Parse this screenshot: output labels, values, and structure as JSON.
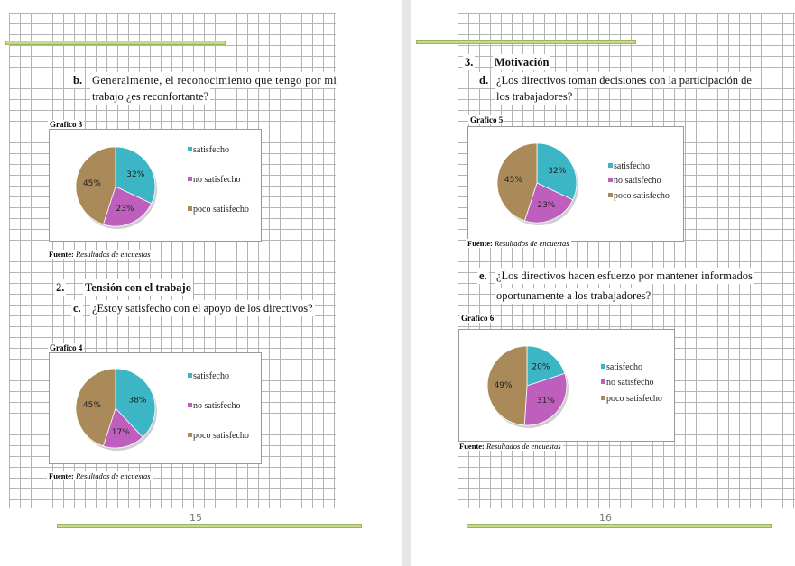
{
  "left_page": {
    "q_b": {
      "letter": "b.",
      "line1": "Generalmente, el reconocimiento que tengo por mi",
      "line2": "trabajo ¿es reconfortante?"
    },
    "chart3": {
      "title": "Grafico 3",
      "source_label": "Fuente:",
      "source_text": "Resultados de encuestas"
    },
    "section2": {
      "number": "2.",
      "title": "Tensión con el trabajo"
    },
    "q_c": {
      "letter": "c.",
      "text": "¿Estoy satisfecho con el apoyo de los directivos?"
    },
    "chart4": {
      "title": "Grafico 4",
      "source_label": "Fuente:",
      "source_text": "Resultados de encuestas"
    },
    "page_number": "15"
  },
  "right_page": {
    "section3": {
      "number": "3.",
      "title": "Motivación"
    },
    "q_d": {
      "letter": "d.",
      "line1": "¿Los directivos toman decisiones con la participación de",
      "line2": "los trabajadores?"
    },
    "chart5": {
      "title": "Grafico 5",
      "source_label": "Fuente:",
      "source_text": "Resultados de encuestas"
    },
    "q_e": {
      "letter": "e.",
      "line1": "¿Los directivos hacen esfuerzo por mantener informados",
      "line2": "oportunamente a los trabajadores?"
    },
    "chart6": {
      "title": "Grafico 6",
      "source_label": "Fuente:",
      "source_text": "Resultados de encuestas"
    },
    "page_number": "16"
  },
  "colors": {
    "satisfecho": "#3cb6c4",
    "no_satisfecho": "#bf5fbd",
    "poco_satisfecho": "#a98a58",
    "accent_bar": "#c6d98e"
  },
  "chart_data": [
    {
      "type": "pie",
      "title": "Grafico 3",
      "categories": [
        "satisfecho",
        "no satisfecho",
        "poco satisfecho"
      ],
      "values": [
        32,
        23,
        45
      ],
      "labels": [
        "32%",
        "23%",
        "45%"
      ],
      "legend": "right"
    },
    {
      "type": "pie",
      "title": "Grafico 4",
      "categories": [
        "satisfecho",
        "no satisfecho",
        "poco satisfecho"
      ],
      "values": [
        38,
        17,
        45
      ],
      "labels": [
        "38%",
        "17%",
        "45%"
      ],
      "legend": "right"
    },
    {
      "type": "pie",
      "title": "Grafico 5",
      "categories": [
        "satisfecho",
        "no satisfecho",
        "poco satisfecho"
      ],
      "values": [
        32,
        23,
        45
      ],
      "labels": [
        "32%",
        "23%",
        "45%"
      ],
      "legend": "right"
    },
    {
      "type": "pie",
      "title": "Grafico 6",
      "categories": [
        "satisfecho",
        "no satisfecho",
        "poco satisfecho"
      ],
      "values": [
        20,
        31,
        49
      ],
      "labels": [
        "20%",
        "31%",
        "49%"
      ],
      "legend": "right"
    }
  ]
}
